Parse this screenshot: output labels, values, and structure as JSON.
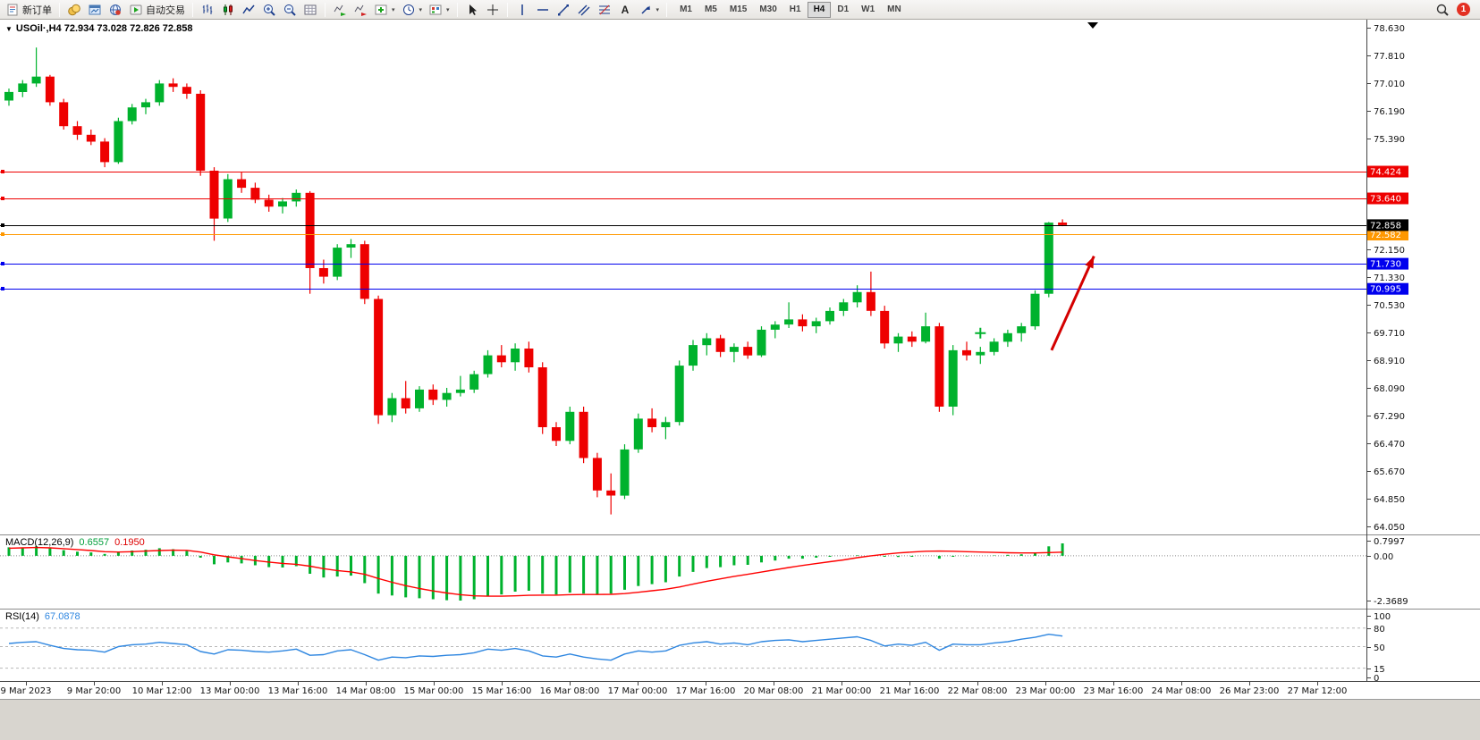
{
  "toolbar": {
    "new_order": "新订单",
    "autotrading": "自动交易",
    "timeframes": [
      "M1",
      "M5",
      "M15",
      "M30",
      "H1",
      "H4",
      "D1",
      "W1",
      "MN"
    ],
    "active_timeframe": "H4",
    "notification_count": "1"
  },
  "chart": {
    "title": "USOil·,H4 72.934 73.028 72.826 72.858",
    "symbol": "USOil",
    "period": "H4",
    "open": "72.934",
    "high": "73.028",
    "low": "72.826",
    "close": "72.858"
  },
  "indicators": {
    "macd": {
      "name": "MACD(12,26,9)",
      "value_main": "0.6557",
      "value_signal": "0.1950"
    },
    "rsi": {
      "name": "RSI(14)",
      "value": "67.0878"
    }
  },
  "chart_data": [
    {
      "type": "candlestick",
      "symbol": "USOil",
      "timeframe": "H4",
      "up_color": "#00B22D",
      "down_color": "#EE0000",
      "ylim": [
        63.85,
        78.85
      ],
      "y_ticks": [
        "78.630",
        "77.810",
        "77.010",
        "76.190",
        "75.390",
        "72.150",
        "71.330",
        "70.530",
        "69.710",
        "68.910",
        "68.090",
        "67.290",
        "66.470",
        "65.670",
        "64.850",
        "64.050"
      ],
      "x_labels": [
        "9 Mar 2023",
        "9 Mar 20:00",
        "10 Mar 12:00",
        "13 Mar 00:00",
        "13 Mar 16:00",
        "14 Mar 08:00",
        "15 Mar 00:00",
        "15 Mar 16:00",
        "16 Mar 08:00",
        "17 Mar 00:00",
        "17 Mar 16:00",
        "20 Mar 08:00",
        "21 Mar 00:00",
        "21 Mar 16:00",
        "22 Mar 08:00",
        "23 Mar 00:00",
        "23 Mar 16:00",
        "24 Mar 08:00",
        "26 Mar 23:00",
        "27 Mar 12:00"
      ],
      "ohlc": [
        [
          76.5,
          76.85,
          76.35,
          76.75
        ],
        [
          76.75,
          77.1,
          76.6,
          77.0
        ],
        [
          77.0,
          78.05,
          76.9,
          77.2
        ],
        [
          77.2,
          77.25,
          76.35,
          76.45
        ],
        [
          76.45,
          76.55,
          75.65,
          75.75
        ],
        [
          75.75,
          75.9,
          75.35,
          75.5
        ],
        [
          75.5,
          75.65,
          75.2,
          75.3
        ],
        [
          75.3,
          75.4,
          74.55,
          74.7
        ],
        [
          74.7,
          76.0,
          74.65,
          75.9
        ],
        [
          75.9,
          76.4,
          75.8,
          76.3
        ],
        [
          76.3,
          76.55,
          76.1,
          76.45
        ],
        [
          76.45,
          77.1,
          76.35,
          77.0
        ],
        [
          77.0,
          77.15,
          76.75,
          76.9
        ],
        [
          76.9,
          77.0,
          76.55,
          76.7
        ],
        [
          76.7,
          76.8,
          74.3,
          74.45
        ],
        [
          74.45,
          74.55,
          72.4,
          73.05
        ],
        [
          73.05,
          74.35,
          72.95,
          74.2
        ],
        [
          74.2,
          74.4,
          73.8,
          73.95
        ],
        [
          73.95,
          74.1,
          73.5,
          73.6
        ],
        [
          73.6,
          73.75,
          73.25,
          73.4
        ],
        [
          73.4,
          73.65,
          73.2,
          73.55
        ],
        [
          73.55,
          73.9,
          73.4,
          73.8
        ],
        [
          73.8,
          73.85,
          70.85,
          71.6
        ],
        [
          71.6,
          71.85,
          71.15,
          71.35
        ],
        [
          71.35,
          72.3,
          71.25,
          72.2
        ],
        [
          72.2,
          72.45,
          71.9,
          72.3
        ],
        [
          72.3,
          72.4,
          70.55,
          70.7
        ],
        [
          70.7,
          70.8,
          67.05,
          67.3
        ],
        [
          67.3,
          67.95,
          67.1,
          67.8
        ],
        [
          67.8,
          68.3,
          67.35,
          67.5
        ],
        [
          67.5,
          68.15,
          67.4,
          68.05
        ],
        [
          68.05,
          68.2,
          67.6,
          67.75
        ],
        [
          67.75,
          68.1,
          67.55,
          67.95
        ],
        [
          67.95,
          68.45,
          67.85,
          68.05
        ],
        [
          68.05,
          68.6,
          67.95,
          68.5
        ],
        [
          68.5,
          69.2,
          68.4,
          69.05
        ],
        [
          69.05,
          69.35,
          68.7,
          68.85
        ],
        [
          68.85,
          69.4,
          68.6,
          69.25
        ],
        [
          69.25,
          69.45,
          68.55,
          68.7
        ],
        [
          68.7,
          68.85,
          66.75,
          66.95
        ],
        [
          66.95,
          67.1,
          66.4,
          66.55
        ],
        [
          66.55,
          67.55,
          66.45,
          67.4
        ],
        [
          67.4,
          67.55,
          65.9,
          66.05
        ],
        [
          66.05,
          66.2,
          64.9,
          65.1
        ],
        [
          65.1,
          65.6,
          64.4,
          64.95
        ],
        [
          64.95,
          66.45,
          64.85,
          66.3
        ],
        [
          66.3,
          67.35,
          66.2,
          67.2
        ],
        [
          67.2,
          67.5,
          66.8,
          66.95
        ],
        [
          66.95,
          67.25,
          66.6,
          67.1
        ],
        [
          67.1,
          68.9,
          67.0,
          68.75
        ],
        [
          68.75,
          69.5,
          68.6,
          69.35
        ],
        [
          69.35,
          69.7,
          69.05,
          69.55
        ],
        [
          69.55,
          69.65,
          69.0,
          69.15
        ],
        [
          69.15,
          69.4,
          68.85,
          69.3
        ],
        [
          69.3,
          69.45,
          68.95,
          69.05
        ],
        [
          69.05,
          69.9,
          69.0,
          69.8
        ],
        [
          69.8,
          70.05,
          69.55,
          69.95
        ],
        [
          69.95,
          70.6,
          69.85,
          70.1
        ],
        [
          70.1,
          70.25,
          69.75,
          69.9
        ],
        [
          69.9,
          70.15,
          69.7,
          70.05
        ],
        [
          70.05,
          70.45,
          69.95,
          70.35
        ],
        [
          70.35,
          70.7,
          70.2,
          70.6
        ],
        [
          70.6,
          71.1,
          70.45,
          70.9
        ],
        [
          70.9,
          71.5,
          70.2,
          70.35
        ],
        [
          70.35,
          70.5,
          69.25,
          69.4
        ],
        [
          69.4,
          69.7,
          69.15,
          69.6
        ],
        [
          69.6,
          69.75,
          69.3,
          69.45
        ],
        [
          69.45,
          70.3,
          69.4,
          69.9
        ],
        [
          69.9,
          70.0,
          67.4,
          67.55
        ],
        [
          67.55,
          69.35,
          67.3,
          69.2
        ],
        [
          69.2,
          69.45,
          68.9,
          69.05
        ],
        [
          69.05,
          69.3,
          68.8,
          69.15
        ],
        [
          69.15,
          69.55,
          69.05,
          69.45
        ],
        [
          69.45,
          69.8,
          69.3,
          69.7
        ],
        [
          69.7,
          70.0,
          69.45,
          69.9
        ],
        [
          69.9,
          70.95,
          69.8,
          70.85
        ],
        [
          70.85,
          72.95,
          70.75,
          72.93
        ],
        [
          72.934,
          73.028,
          72.826,
          72.858
        ]
      ],
      "hlines": [
        {
          "price": 74.424,
          "color": "#ee0000",
          "label": "74.424"
        },
        {
          "price": 73.64,
          "color": "#ee0000",
          "label": "73.640"
        },
        {
          "price": 72.582,
          "color": "#ff9800",
          "label": "72.582"
        },
        {
          "price": 72.858,
          "color": "#000000",
          "label": "72.858"
        },
        {
          "price": 71.73,
          "color": "#0000ee",
          "label": "71.730"
        },
        {
          "price": 70.995,
          "color": "#0000ee",
          "label": "70.995"
        }
      ],
      "annotations": [
        {
          "type": "arrow",
          "color": "#d40000",
          "from": {
            "bar": 76.2,
            "price": 69.2
          },
          "to": {
            "bar": 79.3,
            "price": 71.95
          }
        },
        {
          "type": "plus-marker",
          "color": "#00B22D",
          "at": {
            "bar": 71,
            "price": 69.7
          }
        }
      ]
    },
    {
      "type": "bar",
      "title": "MACD(12,26,9)",
      "histogram_color": "#00B22D",
      "signal_color": "#ff0000",
      "y_ticks": [
        "0.7997",
        "0.00",
        "-2.3689"
      ],
      "histogram": [
        0.45,
        0.42,
        0.5,
        0.4,
        0.3,
        0.22,
        0.18,
        0.1,
        0.2,
        0.28,
        0.32,
        0.4,
        0.35,
        0.25,
        -0.1,
        -0.45,
        -0.35,
        -0.4,
        -0.5,
        -0.6,
        -0.62,
        -0.55,
        -0.95,
        -1.15,
        -1.1,
        -1.05,
        -1.45,
        -2.0,
        -2.1,
        -2.2,
        -2.25,
        -2.3,
        -2.35,
        -2.37,
        -2.3,
        -2.15,
        -2.05,
        -1.9,
        -1.85,
        -2.0,
        -2.05,
        -1.95,
        -2.0,
        -2.05,
        -2.0,
        -1.8,
        -1.6,
        -1.5,
        -1.4,
        -1.1,
        -0.85,
        -0.65,
        -0.6,
        -0.5,
        -0.48,
        -0.35,
        -0.25,
        -0.15,
        -0.15,
        -0.1,
        -0.05,
        0.0,
        0.03,
        0.02,
        -0.05,
        -0.06,
        -0.05,
        0.0,
        -0.15,
        -0.05,
        -0.03,
        0.0,
        0.02,
        0.05,
        0.08,
        0.18,
        0.5,
        0.6557
      ],
      "signal": [
        0.4,
        0.42,
        0.44,
        0.42,
        0.38,
        0.33,
        0.28,
        0.22,
        0.2,
        0.22,
        0.25,
        0.28,
        0.3,
        0.29,
        0.2,
        0.05,
        -0.05,
        -0.15,
        -0.25,
        -0.33,
        -0.4,
        -0.45,
        -0.55,
        -0.68,
        -0.78,
        -0.85,
        -0.98,
        -1.2,
        -1.4,
        -1.58,
        -1.73,
        -1.86,
        -1.97,
        -2.06,
        -2.12,
        -2.14,
        -2.14,
        -2.12,
        -2.09,
        -2.08,
        -2.08,
        -2.06,
        -2.05,
        -2.05,
        -2.04,
        -2.0,
        -1.93,
        -1.85,
        -1.77,
        -1.65,
        -1.5,
        -1.35,
        -1.22,
        -1.09,
        -0.98,
        -0.86,
        -0.74,
        -0.62,
        -0.51,
        -0.41,
        -0.31,
        -0.22,
        -0.1,
        0.0,
        0.08,
        0.15,
        0.2,
        0.24,
        0.25,
        0.24,
        0.22,
        0.2,
        0.18,
        0.16,
        0.15,
        0.15,
        0.17,
        0.195
      ]
    },
    {
      "type": "line",
      "title": "RSI(14)",
      "line_color": "#2e86e0",
      "ylim": [
        0,
        100
      ],
      "levels": [
        80,
        50,
        15
      ],
      "y_ticks": [
        "100",
        "80",
        "50",
        "15",
        "0"
      ],
      "values": [
        55,
        57,
        58,
        52,
        47,
        45,
        44,
        41,
        50,
        53,
        54,
        57,
        55,
        53,
        42,
        38,
        45,
        44,
        42,
        41,
        43,
        46,
        36,
        37,
        43,
        45,
        37,
        28,
        33,
        32,
        35,
        34,
        36,
        37,
        40,
        46,
        44,
        47,
        43,
        35,
        33,
        38,
        33,
        30,
        28,
        38,
        43,
        41,
        43,
        52,
        56,
        58,
        54,
        56,
        53,
        58,
        60,
        61,
        58,
        60,
        62,
        64,
        66,
        60,
        51,
        54,
        52,
        57,
        44,
        54,
        53,
        53,
        56,
        58,
        62,
        65,
        70,
        67.09
      ]
    }
  ]
}
